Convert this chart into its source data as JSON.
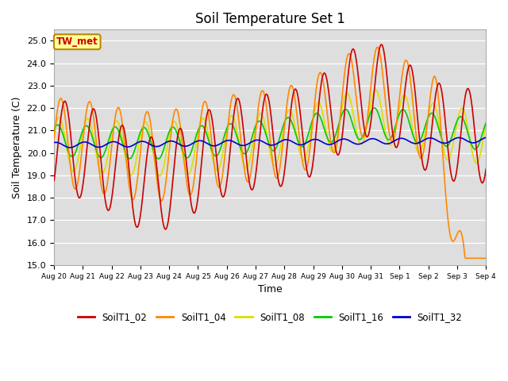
{
  "title": "Soil Temperature Set 1",
  "xlabel": "Time",
  "ylabel": "Soil Temperature (C)",
  "ylim": [
    15.0,
    25.5
  ],
  "yticks": [
    15.0,
    16.0,
    17.0,
    18.0,
    19.0,
    20.0,
    21.0,
    22.0,
    23.0,
    24.0,
    25.0
  ],
  "series_colors": {
    "SoilT1_02": "#cc0000",
    "SoilT1_04": "#ff8800",
    "SoilT1_08": "#dddd00",
    "SoilT1_16": "#00cc00",
    "SoilT1_32": "#0000cc"
  },
  "annotation_text": "TW_met",
  "annotation_color": "#cc0000",
  "annotation_bg": "#ffff99",
  "annotation_border": "#bb8800",
  "bg_color": "#dedede",
  "line_width": 1.2,
  "tick_labels": [
    "Aug 20",
    "Aug 21",
    "Aug 22",
    "Aug 23",
    "Aug 24",
    "Aug 25",
    "Aug 26",
    "Aug 27",
    "Aug 28",
    "Aug 29",
    "Aug 30",
    "Aug 31",
    "Sep 1",
    "Sep 2",
    "Sep 3",
    "Sep 4"
  ]
}
